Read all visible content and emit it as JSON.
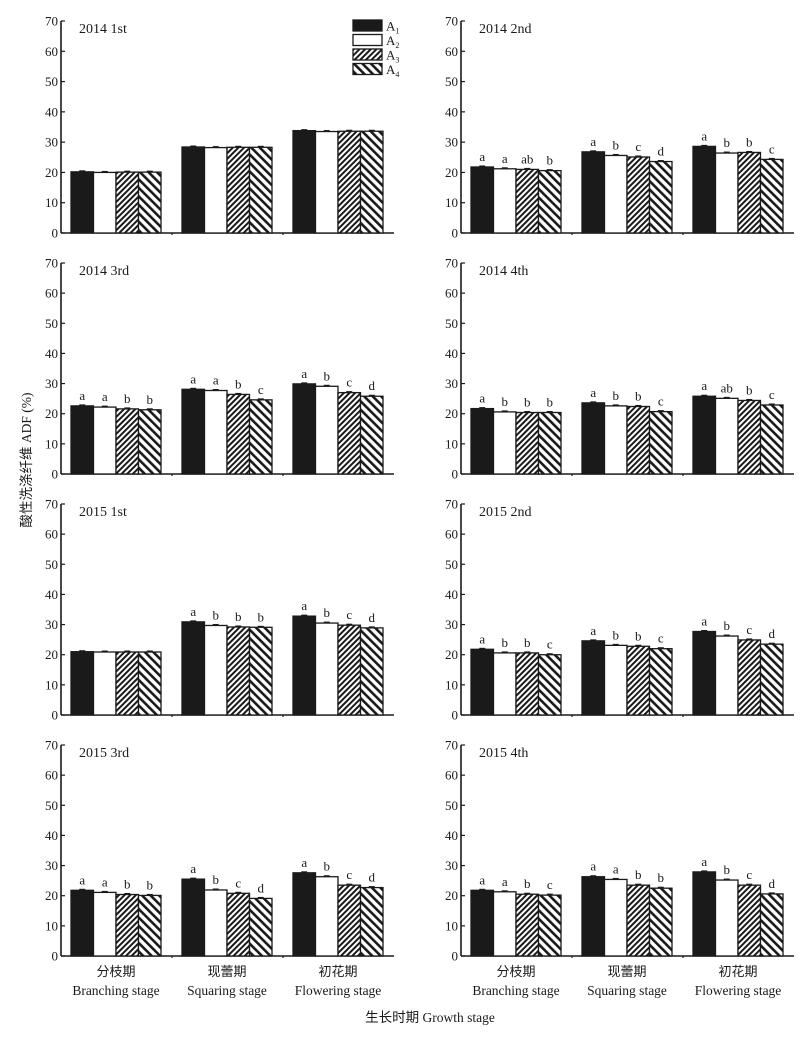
{
  "chart_data": {
    "type": "bar",
    "layout": "4x2 grid of grouped bar panels",
    "ylabel": "酸性洗涤纤维 ADF (%)",
    "xlabel": "生长时期 Growth stage",
    "ylim": [
      0,
      70
    ],
    "yticks": [
      0,
      10,
      20,
      30,
      40,
      50,
      60,
      70
    ],
    "categories": [
      {
        "cn": "分枝期",
        "en": "Branching stage"
      },
      {
        "cn": "现蕾期",
        "en": "Squaring stage"
      },
      {
        "cn": "初花期",
        "en": "Flowering stage"
      }
    ],
    "legend": {
      "placement": "top-right of first panel",
      "entries": [
        {
          "name": "A",
          "sub": "1",
          "fill": "solid-black"
        },
        {
          "name": "A",
          "sub": "2",
          "fill": "white"
        },
        {
          "name": "A",
          "sub": "3",
          "fill": "hatch-forward"
        },
        {
          "name": "A",
          "sub": "4",
          "fill": "hatch-backward"
        }
      ]
    },
    "colors": {
      "bar_dark": "#1a1a1a",
      "bar_light": "#ffffff",
      "axis": "#1a1a1a"
    },
    "panels": [
      {
        "title": "2014 1st",
        "series": [
          {
            "name": "A1",
            "values": [
              20.2,
              28.4,
              33.8
            ]
          },
          {
            "name": "A2",
            "values": [
              20.0,
              28.2,
              33.5
            ]
          },
          {
            "name": "A3",
            "values": [
              20.1,
              28.3,
              33.6
            ]
          },
          {
            "name": "A4",
            "values": [
              20.1,
              28.3,
              33.6
            ]
          }
        ],
        "letters": [
          [
            "",
            "",
            "",
            ""
          ],
          [
            "",
            "",
            "",
            ""
          ],
          [
            "",
            "",
            "",
            ""
          ]
        ]
      },
      {
        "title": "2014 2nd",
        "series": [
          {
            "name": "A1",
            "values": [
              21.8,
              26.8,
              28.6
            ]
          },
          {
            "name": "A2",
            "values": [
              21.2,
              25.6,
              26.4
            ]
          },
          {
            "name": "A3",
            "values": [
              21.0,
              25.1,
              26.6
            ]
          },
          {
            "name": "A4",
            "values": [
              20.6,
              23.6,
              24.3
            ]
          }
        ],
        "letters": [
          [
            "a",
            "a",
            "ab",
            "b"
          ],
          [
            "a",
            "b",
            "c",
            "d"
          ],
          [
            "a",
            "b",
            "b",
            "c"
          ]
        ]
      },
      {
        "title": "2014 3rd",
        "series": [
          {
            "name": "A1",
            "values": [
              22.6,
              28.1,
              29.9
            ]
          },
          {
            "name": "A2",
            "values": [
              22.2,
              27.7,
              29.1
            ]
          },
          {
            "name": "A3",
            "values": [
              21.6,
              26.4,
              27.0
            ]
          },
          {
            "name": "A4",
            "values": [
              21.3,
              24.6,
              25.8
            ]
          }
        ],
        "letters": [
          [
            "a",
            "a",
            "b",
            "b"
          ],
          [
            "a",
            "a",
            "b",
            "c"
          ],
          [
            "a",
            "b",
            "c",
            "d"
          ]
        ]
      },
      {
        "title": "2014 4th",
        "series": [
          {
            "name": "A1",
            "values": [
              21.7,
              23.6,
              25.8
            ]
          },
          {
            "name": "A2",
            "values": [
              20.6,
              22.6,
              25.1
            ]
          },
          {
            "name": "A3",
            "values": [
              20.4,
              22.4,
              24.4
            ]
          },
          {
            "name": "A4",
            "values": [
              20.4,
              20.7,
              22.9
            ]
          }
        ],
        "letters": [
          [
            "a",
            "b",
            "b",
            "b"
          ],
          [
            "a",
            "b",
            "b",
            "c"
          ],
          [
            "a",
            "ab",
            "b",
            "c"
          ]
        ]
      },
      {
        "title": "2015 1st",
        "series": [
          {
            "name": "A1",
            "values": [
              21.0,
              30.9,
              32.8
            ]
          },
          {
            "name": "A2",
            "values": [
              20.9,
              29.7,
              30.5
            ]
          },
          {
            "name": "A3",
            "values": [
              20.9,
              29.2,
              29.8
            ]
          },
          {
            "name": "A4",
            "values": [
              20.9,
              29.1,
              28.9
            ]
          }
        ],
        "letters": [
          [
            "",
            "",
            "",
            ""
          ],
          [
            "a",
            "b",
            "b",
            "b"
          ],
          [
            "a",
            "b",
            "c",
            "d"
          ]
        ]
      },
      {
        "title": "2015 2nd",
        "series": [
          {
            "name": "A1",
            "values": [
              21.8,
              24.6,
              27.7
            ]
          },
          {
            "name": "A2",
            "values": [
              20.6,
              23.1,
              26.2
            ]
          },
          {
            "name": "A3",
            "values": [
              20.6,
              22.8,
              24.9
            ]
          },
          {
            "name": "A4",
            "values": [
              20.0,
              22.0,
              23.5
            ]
          }
        ],
        "letters": [
          [
            "a",
            "b",
            "b",
            "c"
          ],
          [
            "a",
            "b",
            "b",
            "c"
          ],
          [
            "a",
            "b",
            "c",
            "d"
          ]
        ]
      },
      {
        "title": "2015 3rd",
        "series": [
          {
            "name": "A1",
            "values": [
              21.8,
              25.5,
              27.6
            ]
          },
          {
            "name": "A2",
            "values": [
              21.1,
              21.9,
              26.3
            ]
          },
          {
            "name": "A3",
            "values": [
              20.4,
              20.8,
              23.5
            ]
          },
          {
            "name": "A4",
            "values": [
              20.1,
              19.1,
              22.7
            ]
          }
        ],
        "letters": [
          [
            "a",
            "a",
            "b",
            "b"
          ],
          [
            "a",
            "b",
            "c",
            "d"
          ],
          [
            "a",
            "b",
            "c",
            "d"
          ]
        ]
      },
      {
        "title": "2015 4th",
        "series": [
          {
            "name": "A1",
            "values": [
              21.8,
              26.3,
              27.9
            ]
          },
          {
            "name": "A2",
            "values": [
              21.3,
              25.4,
              25.2
            ]
          },
          {
            "name": "A3",
            "values": [
              20.5,
              23.5,
              23.5
            ]
          },
          {
            "name": "A4",
            "values": [
              20.2,
              22.5,
              20.6
            ]
          }
        ],
        "letters": [
          [
            "a",
            "a",
            "b",
            "c"
          ],
          [
            "a",
            "a",
            "b",
            "b"
          ],
          [
            "a",
            "b",
            "c",
            "d"
          ]
        ]
      }
    ]
  }
}
